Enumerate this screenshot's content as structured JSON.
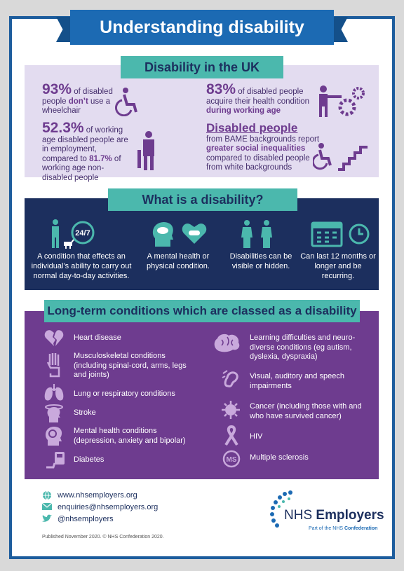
{
  "header": {
    "title": "Understanding disability"
  },
  "section1": {
    "title": "Disability in the UK",
    "stat1": {
      "big": "93%",
      "text_a": " of disabled people ",
      "text_b": "don’t",
      "text_c": " use a wheelchair"
    },
    "stat2": {
      "big": "52.3%",
      "text_a": " of working age disabled people are in employment, compared to ",
      "text_b": "81.7%",
      "text_c": " of working age non-disabled people"
    },
    "stat3": {
      "big": "83%",
      "text_a": " of disabled people acquire their health condition ",
      "text_b": "during working age"
    },
    "stat4": {
      "big": "Disabled people",
      "text_a": "from BAME backgrounds report ",
      "text_b": "greater social inequalities",
      "text_c": " compared to disabled people from white backgrounds"
    }
  },
  "section2": {
    "title": "What is a disability?",
    "items": [
      "A condition that effects an individual’s ability to carry out normal day-to-day activities.",
      "A mental health or physical condition.",
      "Disabilities can be visible or hidden.",
      "Can last 12 months or longer and be recurring."
    ],
    "clock_label": "24/7"
  },
  "section3": {
    "title": "Long-term conditions which are classed as a disability",
    "left": [
      "Heart disease",
      "Musculoskeletal conditions (including spinal-cord, arms, legs and joints)",
      "Lung or respiratory conditions",
      "Stroke",
      "Mental health conditions (depression, anxiety and bipolar)",
      "Diabetes"
    ],
    "right": [
      "Learning difficulties and neuro-diverse conditions (eg autism, dyslexia, dyspraxia)",
      "Visual, auditory and speech impairments",
      "Cancer (including those with and who have survived cancer)",
      "HIV",
      "Multiple sclerosis"
    ],
    "ms_badge": "MS"
  },
  "footer": {
    "website": "www.nhsemployers.org",
    "email": "enquiries@nhsemployers.org",
    "twitter": "@nhsemployers",
    "published": "Published November 2020. © NHS Confederation 2020.",
    "logo_a": "NHS ",
    "logo_b": "Employers",
    "logo_sub_a": "Part of the NHS ",
    "logo_sub_b": "Confederation"
  },
  "colors": {
    "navy": "#1c2f5e",
    "blue": "#1c6ab3",
    "teal": "#4bb8ad",
    "purple": "#6e3c8f",
    "lavender": "#e3dcf0"
  }
}
